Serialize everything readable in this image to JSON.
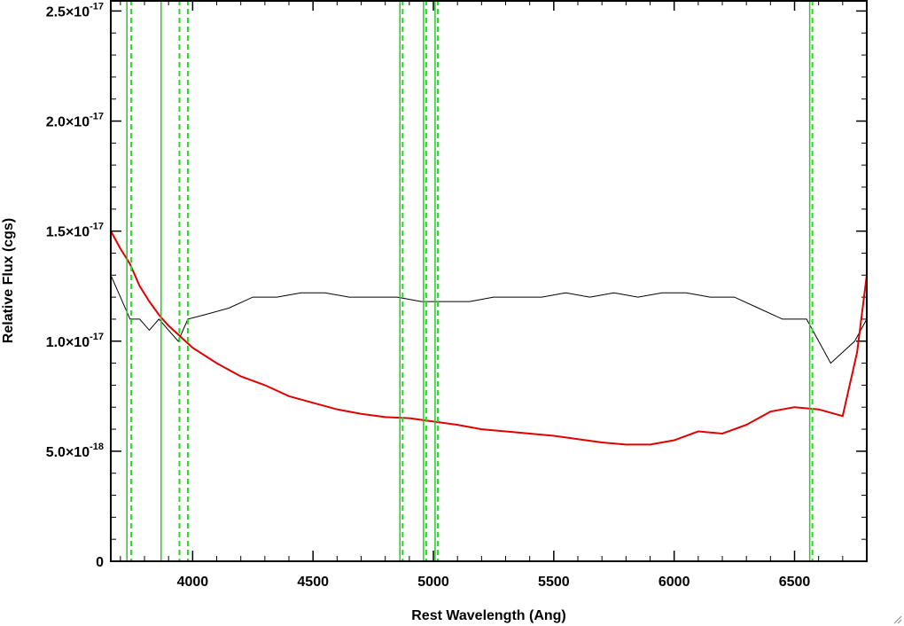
{
  "chart_data": {
    "type": "line",
    "xlabel": "Rest Wavelength (Ang)",
    "ylabel": "Relative Flux (cgs)",
    "xlim": [
      3660,
      6800
    ],
    "ylim": [
      0,
      2.55e-17
    ],
    "x_ticks": [
      4000,
      4500,
      5000,
      5500,
      6000,
      6500
    ],
    "x_tick_labels": [
      "4000",
      "4500",
      "5000",
      "5500",
      "6000",
      "6500"
    ],
    "y_ticks": [
      0,
      5e-18,
      1e-17,
      1.5e-17,
      2e-17,
      2.5e-17
    ],
    "y_tick_labels": [
      {
        "mantissa": "0",
        "exp": ""
      },
      {
        "mantissa": "5.0×10",
        "exp": "-18"
      },
      {
        "mantissa": "1.0×10",
        "exp": "-17"
      },
      {
        "mantissa": "1.5×10",
        "exp": "-17"
      },
      {
        "mantissa": "2.0×10",
        "exp": "-17"
      },
      {
        "mantissa": "2.5×10",
        "exp": "-17"
      }
    ],
    "grid": false,
    "line_markers": {
      "solid_green": [
        3727,
        3869,
        4861,
        4959,
        5007,
        6563
      ],
      "dashed_green": [
        3734,
        3934,
        3969,
        4861,
        4959,
        5007,
        6563
      ]
    },
    "series": [
      {
        "color": "#000000",
        "x": [
          3660,
          3700,
          3740,
          3780,
          3820,
          3860,
          3900,
          3940,
          3980,
          4050,
          4150,
          4250,
          4350,
          4450,
          4550,
          4650,
          4750,
          4850,
          4950,
          5050,
          5150,
          5250,
          5350,
          5450,
          5550,
          5650,
          5750,
          5850,
          5950,
          6050,
          6150,
          6250,
          6350,
          6450,
          6550,
          6650,
          6750,
          6800
        ],
        "y": [
          1.3e-17,
          1.2e-17,
          1.1e-17,
          1.1e-17,
          1.05e-17,
          1.1e-17,
          1.05e-17,
          1e-17,
          1.1e-17,
          1.12e-17,
          1.15e-17,
          1.2e-17,
          1.2e-17,
          1.22e-17,
          1.22e-17,
          1.2e-17,
          1.2e-17,
          1.2e-17,
          1.18e-17,
          1.18e-17,
          1.18e-17,
          1.2e-17,
          1.2e-17,
          1.2e-17,
          1.22e-17,
          1.2e-17,
          1.22e-17,
          1.2e-17,
          1.22e-17,
          1.22e-17,
          1.2e-17,
          1.2e-17,
          1.15e-17,
          1.1e-17,
          1.1e-17,
          9e-18,
          1e-17,
          1.1e-17
        ]
      },
      {
        "color": "#e00000",
        "x": [
          3660,
          3700,
          3740,
          3780,
          3820,
          3860,
          3900,
          3950,
          4000,
          4100,
          4200,
          4300,
          4400,
          4500,
          4600,
          4700,
          4800,
          4900,
          5000,
          5100,
          5200,
          5300,
          5400,
          5500,
          5600,
          5700,
          5800,
          5900,
          6000,
          6100,
          6200,
          6300,
          6400,
          6500,
          6600,
          6700,
          6760,
          6800
        ],
        "y": [
          1.5e-17,
          1.42e-17,
          1.35e-17,
          1.25e-17,
          1.18e-17,
          1.12e-17,
          1.07e-17,
          1.02e-17,
          9.7e-18,
          9e-18,
          8.4e-18,
          8e-18,
          7.5e-18,
          7.2e-18,
          6.9e-18,
          6.7e-18,
          6.55e-18,
          6.5e-18,
          6.35e-18,
          6.2e-18,
          6e-18,
          5.9e-18,
          5.8e-18,
          5.7e-18,
          5.55e-18,
          5.4e-18,
          5.3e-18,
          5.3e-18,
          5.5e-18,
          5.9e-18,
          5.8e-18,
          6.2e-18,
          6.8e-18,
          7e-18,
          6.9e-18,
          6.6e-18,
          9.5e-18,
          1.3e-17
        ]
      }
    ]
  }
}
